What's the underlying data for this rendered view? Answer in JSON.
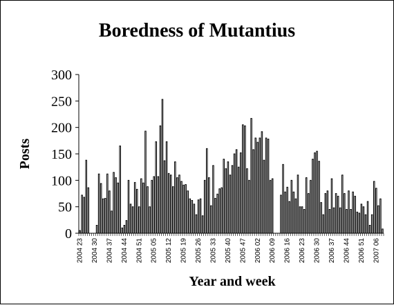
{
  "chart_data": {
    "type": "bar",
    "title": "Boredness of Mutantius",
    "xlabel": "Year and week",
    "ylabel": "Posts",
    "ylim": [
      0,
      300
    ],
    "yticks": [
      0,
      50,
      100,
      150,
      200,
      250,
      300
    ],
    "grid": false,
    "legend": "none",
    "bar_color": "#ffffff",
    "bar_stroke": "#000000",
    "x_tick_labels": [
      "2004 23",
      "2004 30",
      "2004 37",
      "2004 44",
      "2004 51",
      "2005 05",
      "2005 12",
      "2005 19",
      "2005 26",
      "2005 33",
      "2005 40",
      "2005 47",
      "2006 02",
      "2006 09",
      "2006 16",
      "2006 23",
      "2006 30",
      "2006 37",
      "2006 44",
      "2006 51",
      "2007 06"
    ],
    "values": [
      5,
      72,
      68,
      138,
      86,
      0,
      0,
      0,
      15,
      112,
      94,
      65,
      66,
      112,
      80,
      42,
      115,
      105,
      95,
      165,
      10,
      15,
      24,
      100,
      55,
      50,
      96,
      83,
      50,
      103,
      95,
      193,
      88,
      50,
      100,
      107,
      173,
      107,
      203,
      253,
      137,
      173,
      113,
      110,
      88,
      135,
      105,
      110,
      98,
      91,
      92,
      80,
      65,
      62,
      55,
      35,
      63,
      65,
      33,
      100,
      160,
      105,
      52,
      128,
      66,
      74,
      84,
      86,
      140,
      122,
      135,
      110,
      128,
      150,
      158,
      125,
      152,
      205,
      203,
      122,
      100,
      217,
      158,
      180,
      172,
      180,
      192,
      138,
      180,
      178,
      100,
      103,
      0,
      0,
      0,
      72,
      130,
      78,
      87,
      60,
      100,
      78,
      65,
      110,
      50,
      50,
      45,
      105,
      75,
      100,
      140,
      152,
      155,
      136,
      58,
      35,
      75,
      80,
      45,
      103,
      48,
      75,
      70,
      48,
      110,
      75,
      45,
      80,
      45,
      78,
      70,
      40,
      38,
      55,
      50,
      35,
      60,
      15,
      35,
      98,
      85,
      52,
      65,
      8
    ]
  }
}
